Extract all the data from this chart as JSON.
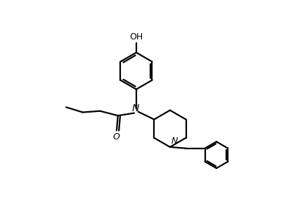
{
  "background_color": "#ffffff",
  "line_color": "#000000",
  "lw": 1.6,
  "figsize": [
    4.24,
    3.14
  ],
  "dpi": 100,
  "xlim": [
    0.0,
    10.0
  ],
  "ylim": [
    0.0,
    8.5
  ]
}
